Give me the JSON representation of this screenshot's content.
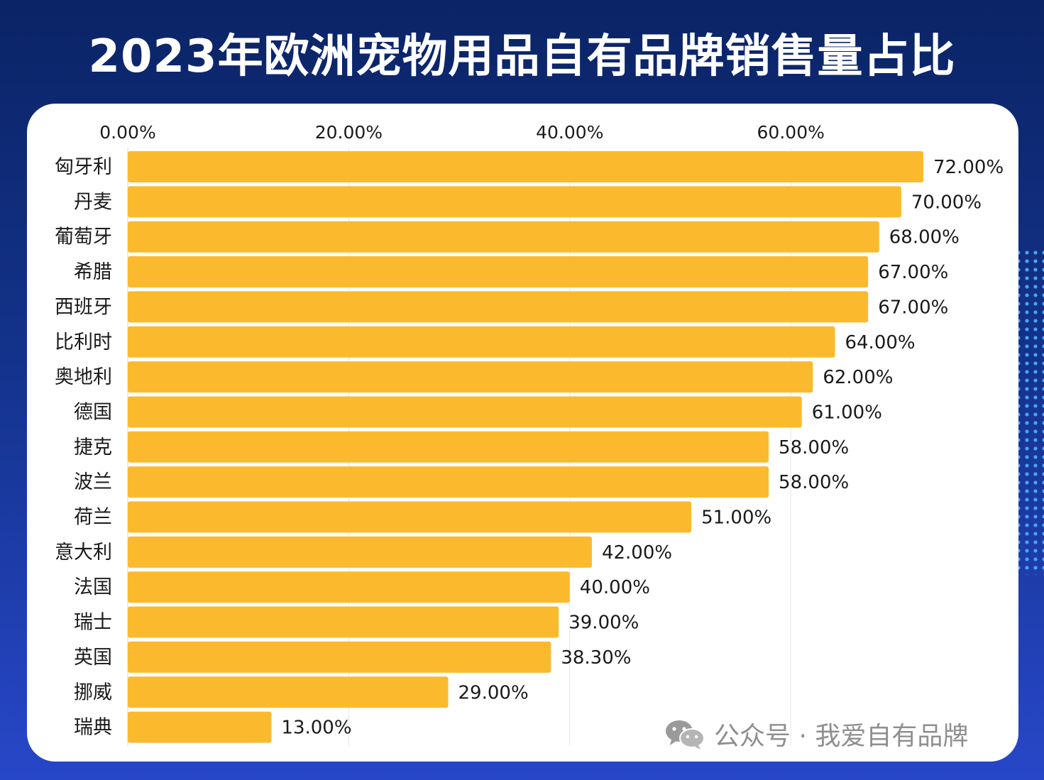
{
  "title": "2023年欧洲宠物用品自有品牌销售量占比",
  "watermark": {
    "text": "公众号 · 我爱自有品牌",
    "icon": "wechat-icon"
  },
  "colors": {
    "bar": "#FBBA2E",
    "background_top": "#0b2466",
    "background_bottom": "#2747c9",
    "grid": "#e6e6e6"
  },
  "chart_data": {
    "type": "bar",
    "orientation": "horizontal",
    "title": "2023年欧洲宠物用品自有品牌销售量占比",
    "xlabel": "",
    "ylabel": "",
    "xlim": [
      0,
      72
    ],
    "ticks": [
      0,
      20,
      40,
      60
    ],
    "tick_labels": [
      "0.00%",
      "20.00%",
      "40.00%",
      "60.00%"
    ],
    "tick_position": "top",
    "categories": [
      "匈牙利",
      "丹麦",
      "葡萄牙",
      "希腊",
      "西班牙",
      "比利时",
      "奥地利",
      "德国",
      "捷克",
      "波兰",
      "荷兰",
      "意大利",
      "法国",
      "瑞士",
      "英国",
      "挪威",
      "瑞典"
    ],
    "values": [
      72.0,
      70.0,
      68.0,
      67.0,
      67.0,
      64.0,
      62.0,
      61.0,
      58.0,
      58.0,
      51.0,
      42.0,
      40.0,
      39.0,
      38.3,
      29.0,
      13.0
    ],
    "value_labels": [
      "72.00%",
      "70.00%",
      "68.00%",
      "67.00%",
      "67.00%",
      "64.00%",
      "62.00%",
      "61.00%",
      "58.00%",
      "58.00%",
      "51.00%",
      "42.00%",
      "40.00%",
      "39.00%",
      "38.30%",
      "29.00%",
      "13.00%"
    ]
  }
}
